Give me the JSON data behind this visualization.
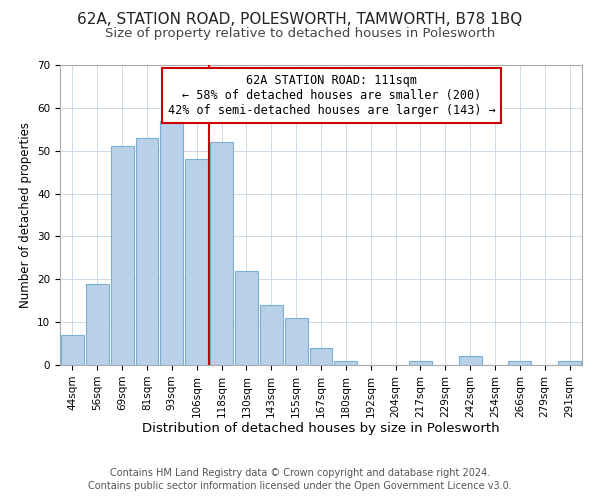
{
  "title1": "62A, STATION ROAD, POLESWORTH, TAMWORTH, B78 1BQ",
  "title2": "Size of property relative to detached houses in Polesworth",
  "xlabel": "Distribution of detached houses by size in Polesworth",
  "ylabel": "Number of detached properties",
  "footer1": "Contains HM Land Registry data © Crown copyright and database right 2024.",
  "footer2": "Contains public sector information licensed under the Open Government Licence v3.0.",
  "bins": [
    "44sqm",
    "56sqm",
    "69sqm",
    "81sqm",
    "93sqm",
    "106sqm",
    "118sqm",
    "130sqm",
    "143sqm",
    "155sqm",
    "167sqm",
    "180sqm",
    "192sqm",
    "204sqm",
    "217sqm",
    "229sqm",
    "242sqm",
    "254sqm",
    "266sqm",
    "279sqm",
    "291sqm"
  ],
  "values": [
    7,
    19,
    51,
    53,
    57,
    48,
    52,
    22,
    14,
    11,
    4,
    1,
    0,
    0,
    1,
    0,
    2,
    0,
    1,
    0,
    1
  ],
  "bar_color": "#b8d0e8",
  "bar_edge_color": "#7bafd4",
  "vline_x_idx": 6,
  "vline_color": "#cc0000",
  "annotation_line1": "62A STATION ROAD: 111sqm",
  "annotation_line2": "← 58% of detached houses are smaller (200)",
  "annotation_line3": "42% of semi-detached houses are larger (143) →",
  "annotation_box_color": "#ffffff",
  "annotation_box_edge": "#cc0000",
  "ylim": [
    0,
    70
  ],
  "yticks": [
    0,
    10,
    20,
    30,
    40,
    50,
    60,
    70
  ],
  "title1_fontsize": 11,
  "title2_fontsize": 9.5,
  "xlabel_fontsize": 9.5,
  "ylabel_fontsize": 8.5,
  "annot_fontsize": 8.5,
  "tick_fontsize": 7.5,
  "footer_fontsize": 7
}
